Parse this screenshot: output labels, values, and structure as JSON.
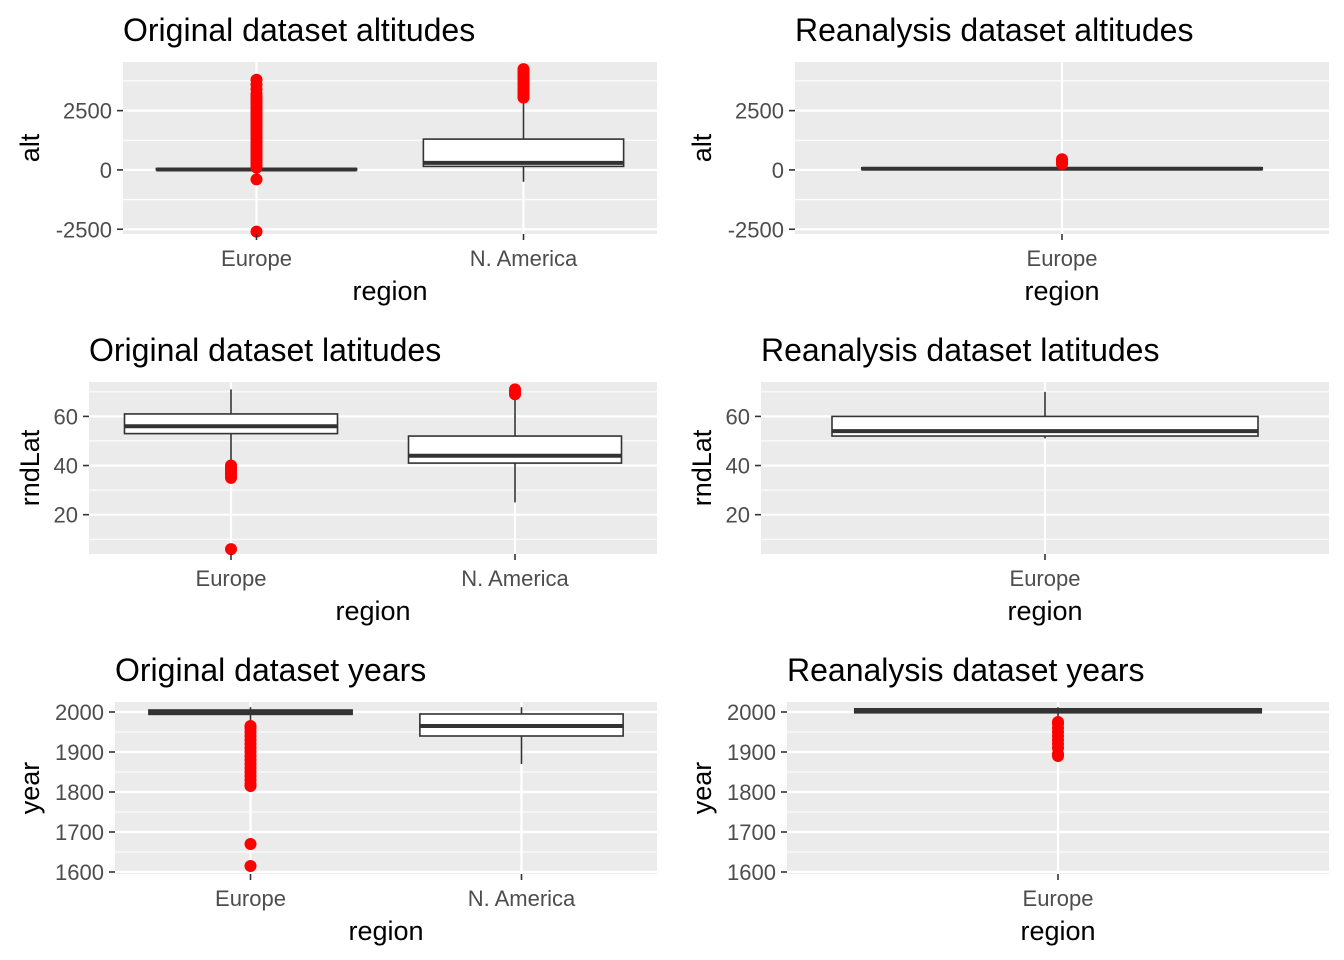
{
  "figure": {
    "background": "#ffffff",
    "panel_background": "#ebebeb",
    "grid_color": "#ffffff",
    "box_fill": "#ffffff",
    "box_line": "#333333",
    "outlier_color": "#ff0000"
  },
  "chart_data": [
    {
      "type": "boxplot",
      "title": "Original dataset altitudes",
      "xlabel": "region",
      "ylabel": "alt",
      "ylim": [
        -2700,
        4550
      ],
      "yticks": [
        -2500,
        0,
        2500
      ],
      "yticklabels": [
        "-2500",
        "0",
        "2500"
      ],
      "grid": true,
      "categories": [
        "Europe",
        "N. America"
      ],
      "boxes": [
        {
          "category": "Europe",
          "min": -5,
          "q1": 0,
          "median": 20,
          "q3": 60,
          "max": 120,
          "outliers": [
            -2600,
            -400,
            100,
            200,
            300,
            400,
            500,
            600,
            700,
            800,
            900,
            1000,
            1100,
            1200,
            1300,
            1400,
            1500,
            1600,
            1700,
            1800,
            1900,
            2000,
            2100,
            2200,
            2300,
            2400,
            2500,
            2600,
            2700,
            2800,
            2900,
            3000,
            3100,
            3200,
            3400,
            3600,
            3800
          ]
        },
        {
          "category": "N. America",
          "min": -500,
          "q1": 150,
          "median": 300,
          "q3": 1300,
          "max": 3000,
          "outliers": [
            3050,
            3150,
            3250,
            3350,
            3450,
            3550,
            3650,
            3750,
            3850,
            3950,
            4050,
            4150,
            4250
          ]
        }
      ]
    },
    {
      "type": "boxplot",
      "title": "Reanalysis dataset altitudes",
      "xlabel": "region",
      "ylabel": "alt",
      "ylim": [
        -2700,
        4550
      ],
      "yticks": [
        -2500,
        0,
        2500
      ],
      "yticklabels": [
        "-2500",
        "0",
        "2500"
      ],
      "grid": true,
      "categories": [
        "Europe"
      ],
      "boxes": [
        {
          "category": "Europe",
          "min": 0,
          "q1": 20,
          "median": 50,
          "q3": 90,
          "max": 200,
          "outliers": [
            250,
            300,
            350,
            400,
            450
          ]
        }
      ]
    },
    {
      "type": "boxplot",
      "title": "Original dataset latitudes",
      "xlabel": "region",
      "ylabel": "rndLat",
      "ylim": [
        4,
        74
      ],
      "yticks": [
        20,
        40,
        60
      ],
      "yticklabels": [
        "20",
        "40",
        "60"
      ],
      "grid": true,
      "categories": [
        "Europe",
        "N. America"
      ],
      "boxes": [
        {
          "category": "Europe",
          "min": 41,
          "q1": 53,
          "median": 56,
          "q3": 61,
          "max": 71,
          "outliers": [
            6,
            35,
            36,
            37,
            38,
            39,
            40
          ]
        },
        {
          "category": "N. America",
          "min": 25,
          "q1": 41,
          "median": 44,
          "q3": 52,
          "max": 68,
          "outliers": [
            69,
            70,
            71
          ]
        }
      ]
    },
    {
      "type": "boxplot",
      "title": "Reanalysis dataset latitudes",
      "xlabel": "region",
      "ylabel": "rndLat",
      "ylim": [
        4,
        74
      ],
      "yticks": [
        20,
        40,
        60
      ],
      "yticklabels": [
        "20",
        "40",
        "60"
      ],
      "grid": true,
      "categories": [
        "Europe"
      ],
      "boxes": [
        {
          "category": "Europe",
          "min": 51,
          "q1": 52,
          "median": 54,
          "q3": 60,
          "max": 70,
          "outliers": []
        }
      ]
    },
    {
      "type": "boxplot",
      "title": "Original dataset years",
      "xlabel": "region",
      "ylabel": "year",
      "ylim": [
        1595,
        2025
      ],
      "yticks": [
        1600,
        1700,
        1800,
        1900,
        2000
      ],
      "yticklabels": [
        "1600",
        "1700",
        "1800",
        "1900",
        "2000"
      ],
      "grid": true,
      "categories": [
        "Europe",
        "N. America"
      ],
      "boxes": [
        {
          "category": "Europe",
          "min": 1975,
          "q1": 1994,
          "median": 2000,
          "q3": 2005,
          "max": 2012,
          "outliers": [
            1615,
            1670,
            1815,
            1820,
            1830,
            1840,
            1850,
            1860,
            1870,
            1880,
            1890,
            1900,
            1910,
            1920,
            1930,
            1940,
            1950,
            1960,
            1965
          ]
        },
        {
          "category": "N. America",
          "min": 1870,
          "q1": 1940,
          "median": 1965,
          "q3": 1995,
          "max": 2012,
          "outliers": []
        }
      ]
    },
    {
      "type": "boxplot",
      "title": "Reanalysis dataset years",
      "xlabel": "region",
      "ylabel": "year",
      "ylim": [
        1595,
        2025
      ],
      "yticks": [
        1600,
        1700,
        1800,
        1900,
        2000
      ],
      "yticklabels": [
        "1600",
        "1700",
        "1800",
        "1900",
        "2000"
      ],
      "grid": true,
      "categories": [
        "Europe"
      ],
      "boxes": [
        {
          "category": "Europe",
          "min": 1985,
          "q1": 1998,
          "median": 2002,
          "q3": 2008,
          "max": 2012,
          "outliers": [
            1890,
            1895,
            1910,
            1920,
            1930,
            1940,
            1950,
            1960,
            1970,
            1975
          ]
        }
      ]
    }
  ]
}
